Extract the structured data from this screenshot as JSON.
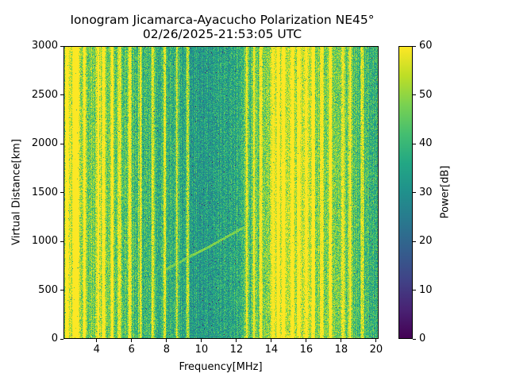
{
  "chart_data": {
    "type": "heatmap",
    "title": "Ionogram Jicamarca-Ayacucho Polarization NE45°",
    "subtitle": "02/26/2025-21:53:05 UTC",
    "xlabel": "Frequency[MHz]",
    "ylabel": "Virtual Distance[km]",
    "colorbar_label": "Power[dB]",
    "colormap": "viridis",
    "xlim": [
      2.1,
      20.14
    ],
    "ylim": [
      0,
      3000
    ],
    "clim": [
      0,
      60
    ],
    "x_ticks": [
      4,
      6,
      8,
      10,
      12,
      14,
      16,
      18,
      20
    ],
    "y_ticks": [
      0,
      500,
      1000,
      1500,
      2000,
      2500,
      3000
    ],
    "colorbar_ticks": [
      0,
      10,
      20,
      30,
      40,
      50,
      60
    ],
    "grid": false,
    "mean_power_profile": {
      "frequency_mhz": [
        2.0,
        2.5,
        3.0,
        3.5,
        4.0,
        4.5,
        5.0,
        5.5,
        6.0,
        6.5,
        7.0,
        7.5,
        8.0,
        8.5,
        9.0,
        9.5,
        10.0,
        10.5,
        11.0,
        11.5,
        12.0,
        12.5,
        13.0,
        13.5,
        14.0,
        14.5,
        15.0,
        15.5,
        16.0,
        16.5,
        17.0,
        17.5,
        18.0,
        18.5,
        19.0,
        19.5,
        20.0
      ],
      "power_db": [
        50,
        56,
        50,
        47,
        48,
        48,
        45,
        43,
        42,
        41,
        40,
        39,
        38,
        37,
        36,
        35,
        34,
        34,
        35,
        35,
        36,
        40,
        42,
        46,
        52,
        55,
        54,
        53,
        52,
        50,
        47,
        46,
        46,
        45,
        42,
        40,
        39
      ]
    },
    "bright_lines_mhz": [
      2.3,
      2.7,
      2.9,
      3.3,
      4.1,
      4.4,
      4.9,
      5.3,
      5.9,
      6.5,
      7.2,
      7.9,
      8.6,
      9.2,
      12.6,
      13.0,
      13.4,
      14.1,
      14.4,
      14.7,
      15.2,
      15.6,
      16.0,
      16.4,
      16.9,
      17.4,
      18.1,
      18.5,
      19.2
    ],
    "echo_trace": {
      "frequency_mhz": [
        7.8,
        8.5,
        9.5,
        10.5,
        11.5,
        12.5
      ],
      "virtual_distance_km": [
        700,
        760,
        860,
        950,
        1050,
        1150
      ],
      "power_db": 48
    }
  }
}
